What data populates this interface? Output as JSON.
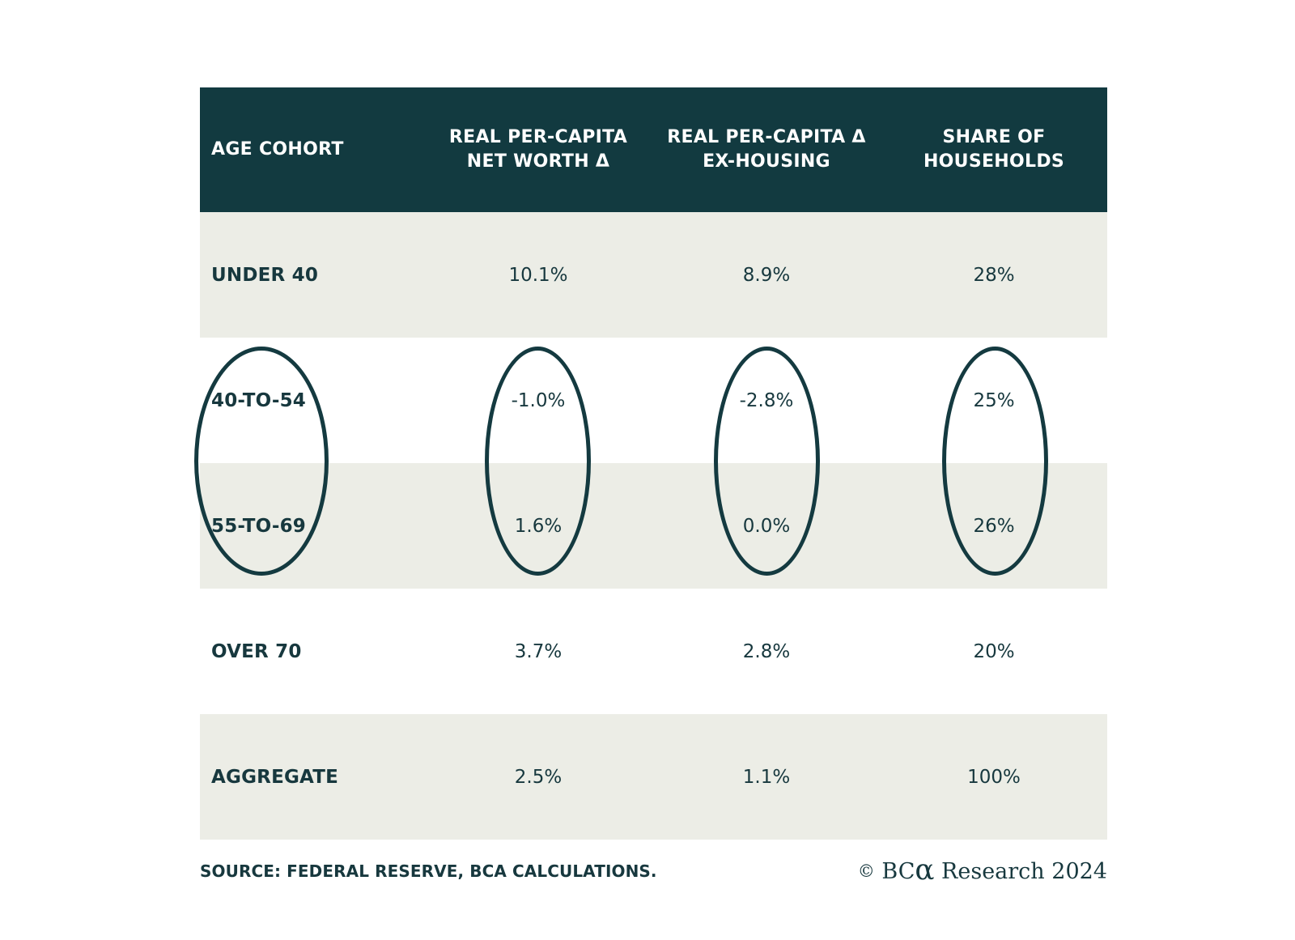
{
  "colors": {
    "header_bg": "#123A40",
    "header_text": "#FFFFFF",
    "row_alt_bg": "#ECEDE6",
    "row_white_bg": "#FFFFFF",
    "text": "#17383E",
    "ellipse_stroke": "#143A40"
  },
  "table": {
    "header": [
      {
        "line1": "AGE COHORT",
        "line2": ""
      },
      {
        "line1": "REAL PER-CAPITA",
        "line2": "NET WORTH Δ"
      },
      {
        "line1": "REAL PER-CAPITA Δ",
        "line2": "EX-HOUSING"
      },
      {
        "line1": "SHARE OF",
        "line2": "HOUSEHOLDS"
      }
    ],
    "rows": [
      {
        "label": "UNDER 40",
        "values": [
          "10.1%",
          "8.9%",
          "28%"
        ]
      },
      {
        "label": "40-TO-54",
        "values": [
          "-1.0%",
          "-2.8%",
          "25%"
        ]
      },
      {
        "label": "55-TO-69",
        "values": [
          "1.6%",
          "0.0%",
          "26%"
        ]
      },
      {
        "label": "OVER 70",
        "values": [
          "3.7%",
          "2.8%",
          "20%"
        ]
      },
      {
        "label": "AGGREGATE",
        "values": [
          "2.5%",
          "1.1%",
          "100%"
        ]
      }
    ]
  },
  "footer": {
    "source": "SOURCE: FEDERAL RESERVE, BCA CALCULATIONS.",
    "copyright_symbol": "©",
    "brand_bc": "BC",
    "brand_alpha": "α",
    "brand_rest": " Research 2024"
  },
  "chart_data": {
    "type": "table",
    "title": "",
    "columns": [
      "AGE COHORT",
      "REAL PER-CAPITA NET WORTH Δ",
      "REAL PER-CAPITA Δ EX-HOUSING",
      "SHARE OF HOUSEHOLDS"
    ],
    "rows": [
      [
        "UNDER 40",
        "10.1%",
        "8.9%",
        "28%"
      ],
      [
        "40-TO-54",
        "-1.0%",
        "-2.8%",
        "25%"
      ],
      [
        "55-TO-69",
        "1.6%",
        "0.0%",
        "26%"
      ],
      [
        "OVER 70",
        "3.7%",
        "2.8%",
        "20%"
      ],
      [
        "AGGREGATE",
        "2.5%",
        "1.1%",
        "100%"
      ]
    ],
    "annotations": "Ellipses circle the 40-TO-54 and 55-TO-69 rows in all four columns",
    "source": "SOURCE: FEDERAL RESERVE, BCA CALCULATIONS.",
    "credit": "© BCα Research 2024"
  }
}
